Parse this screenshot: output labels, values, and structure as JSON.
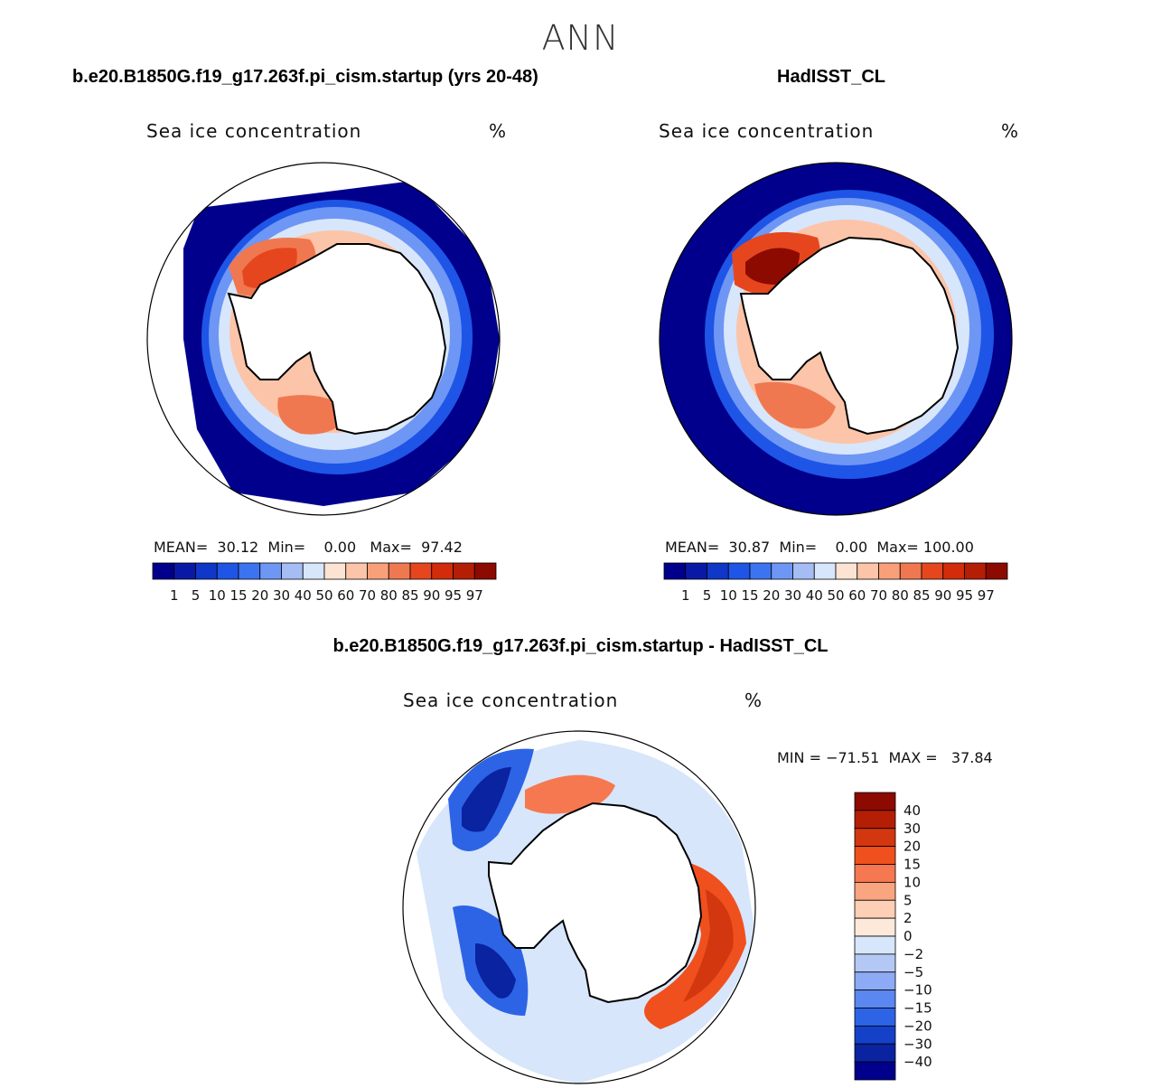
{
  "title": "ANN",
  "panels": [
    {
      "case": "b.e20.B1850G.f19_g17.263f.pi_cism.startup (yrs 20-48)",
      "variable": "Sea ice concentration",
      "units": "%",
      "stats": {
        "mean_label": "MEAN=",
        "mean": "30.12",
        "min_label": "Min=",
        "min": "0.00",
        "max_label": "Max=",
        "max": "97.42"
      }
    },
    {
      "case": "HadISST_CL",
      "variable": "Sea ice concentration",
      "units": "%",
      "stats": {
        "mean_label": "MEAN=",
        "mean": "30.87",
        "min_label": "Min=",
        "min": "0.00",
        "max_label": "Max=",
        "max": "100.00"
      }
    }
  ],
  "diff": {
    "case": "b.e20.B1850G.f19_g17.263f.pi_cism.startup - HadISST_CL",
    "variable": "Sea ice concentration",
    "units": "%",
    "minmax": "MIN = −71.51  MAX =   37.84"
  },
  "chart_data": [
    {
      "type": "heatmap",
      "projection": "south-polar-stereographic",
      "title": "b.e20.B1850G.f19_g17.263f.pi_cism.startup (yrs 20-48)",
      "variable": "Sea ice concentration",
      "units": "%",
      "mean": 30.12,
      "min": 0.0,
      "max": 97.42,
      "colorbar_levels": [
        1,
        5,
        10,
        15,
        20,
        30,
        40,
        50,
        60,
        70,
        80,
        85,
        90,
        95,
        97
      ],
      "colorbar_labels": [
        "1",
        "5",
        "10",
        "15",
        "20",
        "30",
        "40",
        "50",
        "60",
        "70",
        "80",
        "85",
        "90",
        "95",
        "97"
      ]
    },
    {
      "type": "heatmap",
      "projection": "south-polar-stereographic",
      "title": "HadISST_CL",
      "variable": "Sea ice concentration",
      "units": "%",
      "mean": 30.87,
      "min": 0.0,
      "max": 100.0,
      "colorbar_levels": [
        1,
        5,
        10,
        15,
        20,
        30,
        40,
        50,
        60,
        70,
        80,
        85,
        90,
        95,
        97
      ],
      "colorbar_labels": [
        "1",
        "5",
        "10",
        "15",
        "20",
        "30",
        "40",
        "50",
        "60",
        "70",
        "80",
        "85",
        "90",
        "95",
        "97"
      ]
    },
    {
      "type": "heatmap",
      "projection": "south-polar-stereographic",
      "title": "b.e20.B1850G.f19_g17.263f.pi_cism.startup - HadISST_CL",
      "variable": "Sea ice concentration",
      "units": "%",
      "min": -71.51,
      "max": 37.84,
      "colorbar_levels": [
        40,
        30,
        20,
        15,
        10,
        5,
        2,
        0,
        -2,
        -5,
        -10,
        -15,
        -20,
        -30,
        -40
      ],
      "colorbar_labels": [
        "40",
        "30",
        "20",
        "15",
        "10",
        "5",
        "2",
        "0",
        "−2",
        "−5",
        "−10",
        "−15",
        "−20",
        "−30",
        "−40"
      ]
    }
  ],
  "palette": {
    "seq": [
      "#00008c",
      "#0a19a5",
      "#0f37c8",
      "#1e55e6",
      "#3c73f0",
      "#6e96f5",
      "#a5bcf5",
      "#d7e6fa",
      "#fde4d2",
      "#fcc4a8",
      "#f9a07a",
      "#f07850",
      "#e6461e",
      "#d22c0a",
      "#b41e05",
      "#8c0a00"
    ],
    "div": [
      "#8c0a00",
      "#b41e05",
      "#d23710",
      "#f0501e",
      "#f57850",
      "#f9a57f",
      "#fdcfb4",
      "#fde9da",
      "#d7e6fa",
      "#b4c8f5",
      "#8caaf5",
      "#5a87f0",
      "#2d64e6",
      "#1441c8",
      "#0a23a0",
      "#00008c"
    ]
  }
}
